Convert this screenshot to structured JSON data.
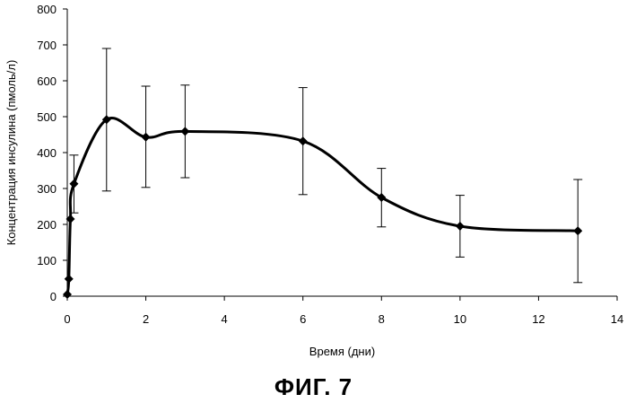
{
  "chart_data": {
    "type": "line",
    "title": "",
    "xlabel": "Время (дни)",
    "ylabel": "Концентрация инсулина (пмоль/л)",
    "xlim": [
      0,
      14
    ],
    "ylim": [
      0,
      800
    ],
    "x_ticks": [
      0,
      2,
      4,
      6,
      8,
      10,
      12,
      14
    ],
    "y_ticks": [
      0,
      100,
      200,
      300,
      400,
      500,
      600,
      700,
      800
    ],
    "grid": false,
    "legend": "none",
    "line_style": "smooth",
    "marker": "diamond",
    "color": "#000000",
    "series": [
      {
        "x": [
          0,
          0.04,
          0.08,
          0.17,
          1,
          2,
          3,
          6,
          8,
          10,
          13
        ],
        "y": [
          5,
          48,
          215,
          313,
          492,
          443,
          459,
          432,
          275,
          195,
          182
        ],
        "error_low": [
          5,
          48,
          215,
          232,
          293,
          303,
          330,
          283,
          193,
          109,
          38
        ],
        "error_high": [
          5,
          48,
          215,
          393,
          690,
          585,
          588,
          581,
          356,
          281,
          325
        ]
      }
    ]
  },
  "caption": "ФИГ. 7"
}
